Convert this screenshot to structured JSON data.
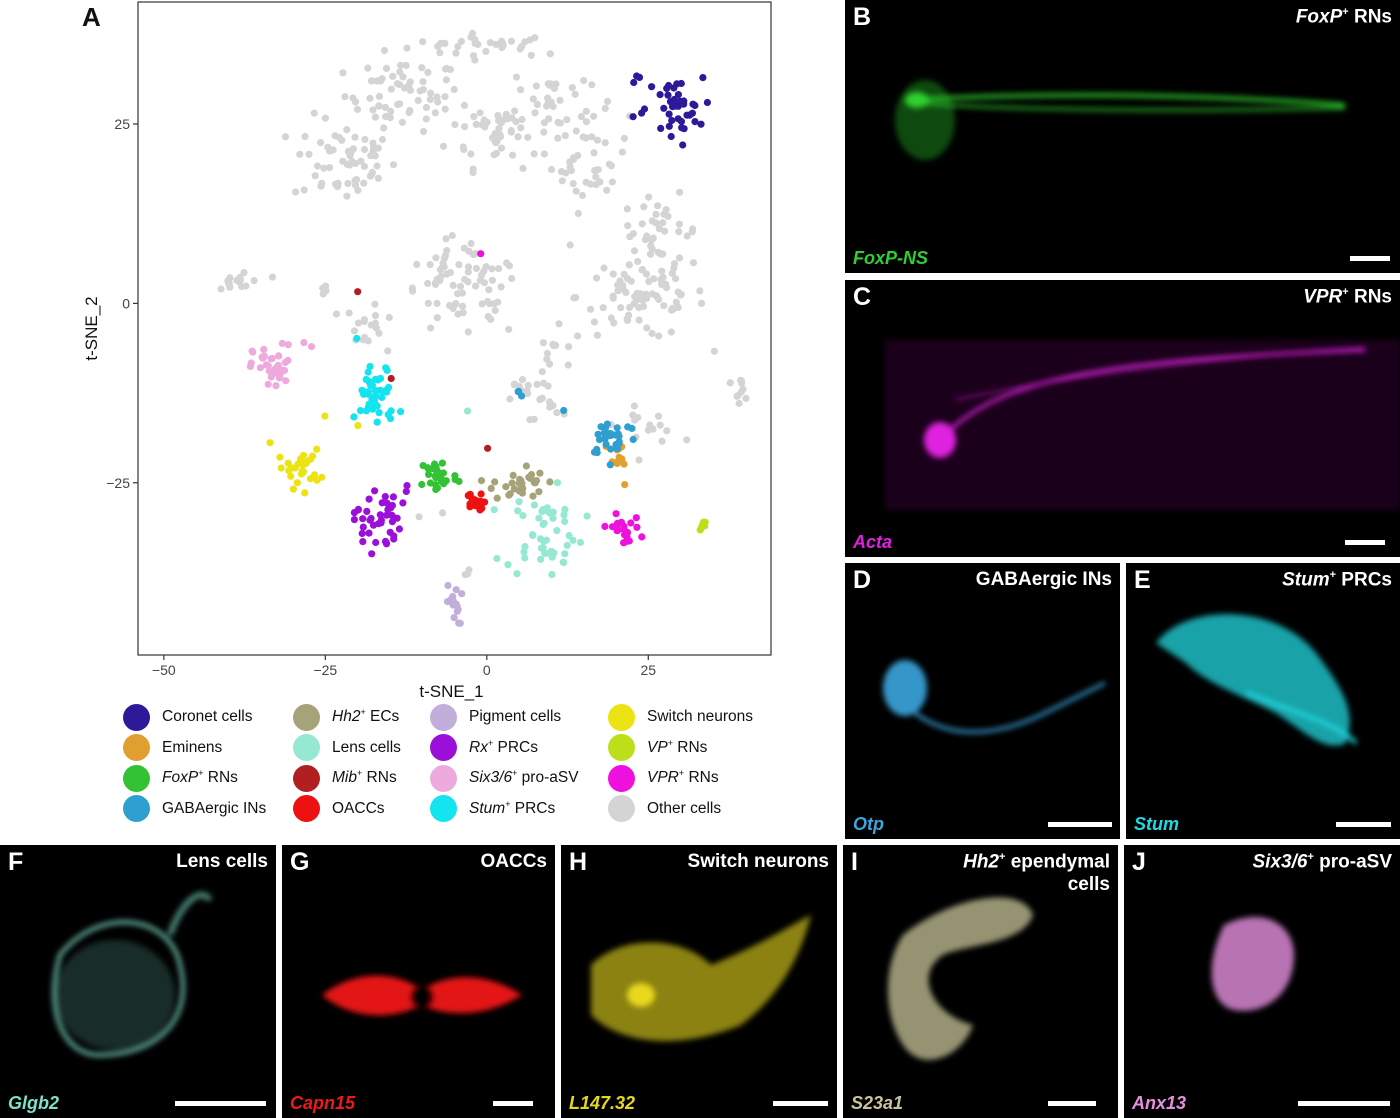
{
  "figure": {
    "panel_a": {
      "letter": "A",
      "colors": {
        "coronet": "#2e1a98",
        "eminens": "#e0a030",
        "foxp": "#33c233",
        "gaba": "#2f9fd0",
        "hh2": "#a6a27a",
        "lens": "#95e8d2",
        "mib": "#b02020",
        "oacc": "#ee1111",
        "pigment": "#c2aedb",
        "rx": "#9b10d8",
        "six": "#eeaadd",
        "stum": "#13e4ef",
        "switch": "#ebe412",
        "vp": "#bcdf1a",
        "vpr": "#ee11dd",
        "other": "#d4d4d4"
      },
      "legend": [
        {
          "key": "coronet",
          "italic": "",
          "sup": "",
          "text": "Coronet cells"
        },
        {
          "key": "eminens",
          "italic": "",
          "sup": "",
          "text": "Eminens"
        },
        {
          "key": "foxp",
          "italic": "FoxP",
          "sup": "+",
          "text": " RNs"
        },
        {
          "key": "gaba",
          "italic": "",
          "sup": "",
          "text": "GABAergic INs"
        },
        {
          "key": "hh2",
          "italic": "Hh2",
          "sup": "+",
          "text": " ECs"
        },
        {
          "key": "lens",
          "italic": "",
          "sup": "",
          "text": "Lens cells"
        },
        {
          "key": "mib",
          "italic": "Mib",
          "sup": "+",
          "text": " RNs"
        },
        {
          "key": "oacc",
          "italic": "",
          "sup": "",
          "text": "OACCs"
        },
        {
          "key": "pigment",
          "italic": "",
          "sup": "",
          "text": "Pigment cells"
        },
        {
          "key": "rx",
          "italic": "Rx",
          "sup": "+",
          "text": " PRCs"
        },
        {
          "key": "six",
          "italic": "Six3/6",
          "sup": "+",
          "text": " pro-aSV"
        },
        {
          "key": "stum",
          "italic": "Stum",
          "sup": "+",
          "text": " PRCs"
        },
        {
          "key": "switch",
          "italic": "",
          "sup": "",
          "text": "Switch neurons"
        },
        {
          "key": "vp",
          "italic": "VP",
          "sup": "+",
          "text": " RNs"
        },
        {
          "key": "vpr",
          "italic": "VPR",
          "sup": "+",
          "text": " RNs"
        },
        {
          "key": "other",
          "italic": "",
          "sup": "",
          "text": "Other cells"
        }
      ]
    },
    "panels": [
      {
        "letter": "B",
        "italic": "FoxP",
        "sup": "+",
        "after": " RNs",
        "stain": "FoxP-NS",
        "color": "#2fd02f"
      },
      {
        "letter": "C",
        "italic": "VPR",
        "sup": "+",
        "after": " RNs",
        "stain": "Acta",
        "color": "#e020e0"
      },
      {
        "letter": "D",
        "italic": "",
        "sup": "",
        "after": "GABAergic INs",
        "stain": "Otp",
        "color": "#3aa6e0"
      },
      {
        "letter": "E",
        "italic": "Stum",
        "sup": "+",
        "after": " PRCs",
        "stain": "Stum",
        "color": "#20d8e0"
      },
      {
        "letter": "F",
        "italic": "",
        "sup": "",
        "after": "Lens cells",
        "stain": "Glgb2",
        "color": "#7de0c8"
      },
      {
        "letter": "G",
        "italic": "",
        "sup": "",
        "after": "OACCs",
        "stain": "Capn15",
        "color": "#f01818"
      },
      {
        "letter": "H",
        "italic": "",
        "sup": "",
        "after": "Switch neurons",
        "stain": "L147.32",
        "color": "#e8d81a"
      },
      {
        "letter": "I",
        "italic": "Hh2",
        "sup": "+",
        "after": " ependymal cells",
        "stain": "S23a1",
        "color": "#c8c49a"
      },
      {
        "letter": "J",
        "italic": "Six3/6",
        "sup": "+",
        "after": " pro-aSV",
        "stain": "Anx13",
        "color": "#e690e0"
      }
    ]
  },
  "chart_data": {
    "type": "scatter",
    "xlabel": "t-SNE_1",
    "ylabel": "t-SNE_2",
    "xlim": [
      -54,
      44
    ],
    "ylim": [
      -49,
      42
    ],
    "xticks": [
      -50,
      -25,
      0,
      25
    ],
    "yticks": [
      -25,
      0,
      25
    ],
    "grid": false,
    "legend": "bottom",
    "series": [
      {
        "name": "Coronet cells",
        "key": "coronet",
        "clusters": [
          {
            "c": [
              29,
              27
            ],
            "sx": 2.2,
            "sy": 2.2,
            "n": 40
          },
          {
            "c": [
              24,
              31
            ],
            "sx": 0.6,
            "sy": 0.6,
            "n": 3
          },
          {
            "c": [
              23,
              26
            ],
            "sx": 0.6,
            "sy": 0.6,
            "n": 2
          }
        ]
      },
      {
        "name": "Eminens",
        "key": "eminens",
        "clusters": [
          {
            "c": [
              20.5,
              -22
            ],
            "sx": 1.2,
            "sy": 1.8,
            "n": 11
          }
        ]
      },
      {
        "name": "FoxP+ RNs",
        "key": "foxp",
        "clusters": [
          {
            "c": [
              -7.5,
              -24
            ],
            "sx": 1.5,
            "sy": 1.3,
            "n": 30
          }
        ]
      },
      {
        "name": "GABAergic INs",
        "key": "gaba",
        "clusters": [
          {
            "c": [
              19.5,
              -18.5
            ],
            "sx": 2.0,
            "sy": 1.4,
            "n": 30
          },
          {
            "c": [
              5,
              -13
            ],
            "sx": 0.9,
            "sy": 0.4,
            "n": 3
          },
          {
            "c": [
              12,
              -15
            ],
            "sx": 0.1,
            "sy": 0.1,
            "n": 1
          }
        ]
      },
      {
        "name": "Hh2+ ECs",
        "key": "hh2",
        "clusters": [
          {
            "c": [
              5,
              -25
            ],
            "sx": 2.0,
            "sy": 1.3,
            "n": 30
          }
        ]
      },
      {
        "name": "Lens cells",
        "key": "lens",
        "clusters": [
          {
            "c": [
              9,
              -32
            ],
            "sx": 3.0,
            "sy": 3.0,
            "n": 50
          },
          {
            "c": [
              -3,
              -15
            ],
            "sx": 0.1,
            "sy": 0.1,
            "n": 1
          }
        ]
      },
      {
        "name": "Mib+ RNs",
        "key": "mib",
        "clusters": [
          {
            "c": [
              -20,
              1.5
            ],
            "sx": 0.1,
            "sy": 0.1,
            "n": 1
          },
          {
            "c": [
              -15,
              -10.5
            ],
            "sx": 0.1,
            "sy": 0.1,
            "n": 1
          },
          {
            "c": [
              0,
              -20
            ],
            "sx": 0.1,
            "sy": 0.1,
            "n": 1
          }
        ]
      },
      {
        "name": "OACCs",
        "key": "oacc",
        "clusters": [
          {
            "c": [
              -2,
              -28
            ],
            "sx": 0.7,
            "sy": 0.8,
            "n": 16
          }
        ]
      },
      {
        "name": "Pigment cells",
        "key": "pigment",
        "clusters": [
          {
            "c": [
              -5,
              -42
            ],
            "sx": 0.6,
            "sy": 1.4,
            "n": 16
          }
        ]
      },
      {
        "name": "Rx+ PRCs",
        "key": "rx",
        "clusters": [
          {
            "c": [
              -17,
              -30
            ],
            "sx": 1.8,
            "sy": 2.2,
            "n": 40
          },
          {
            "c": [
              -12.5,
              -26
            ],
            "sx": 0.6,
            "sy": 0.6,
            "n": 2
          }
        ]
      },
      {
        "name": "Six3/6+ pro-aSV",
        "key": "six",
        "clusters": [
          {
            "c": [
              -33,
              -9
            ],
            "sx": 1.6,
            "sy": 1.6,
            "n": 38
          },
          {
            "c": [
              -28,
              -6
            ],
            "sx": 0.5,
            "sy": 0.5,
            "n": 2
          }
        ]
      },
      {
        "name": "Stum+ PRCs",
        "key": "stum",
        "clusters": [
          {
            "c": [
              -17,
              -13
            ],
            "sx": 1.6,
            "sy": 2.2,
            "n": 45
          },
          {
            "c": [
              -20,
              -5
            ],
            "sx": 0.1,
            "sy": 0.1,
            "n": 1
          }
        ]
      },
      {
        "name": "Switch neurons",
        "key": "switch",
        "clusters": [
          {
            "c": [
              -29,
              -23
            ],
            "sx": 1.6,
            "sy": 1.3,
            "n": 26
          },
          {
            "c": [
              -33.5,
              -19.5
            ],
            "sx": 0.1,
            "sy": 0.1,
            "n": 1
          },
          {
            "c": [
              -25,
              -15.5
            ],
            "sx": 0.1,
            "sy": 0.1,
            "n": 1
          },
          {
            "c": [
              -20,
              -17
            ],
            "sx": 0.1,
            "sy": 0.1,
            "n": 1
          }
        ]
      },
      {
        "name": "VP+ RNs",
        "key": "vp",
        "clusters": [
          {
            "c": [
              33.5,
              -31
            ],
            "sx": 0.3,
            "sy": 0.3,
            "n": 6
          }
        ]
      },
      {
        "name": "VPR+ RNs",
        "key": "vpr",
        "clusters": [
          {
            "c": [
              21,
              -31.5
            ],
            "sx": 1.4,
            "sy": 1.0,
            "n": 22
          },
          {
            "c": [
              -1.2,
              6.8
            ],
            "sx": 0.1,
            "sy": 0.1,
            "n": 1
          }
        ]
      },
      {
        "name": "Other cells",
        "key": "other",
        "clusters": [
          {
            "c": [
              0,
              36
            ],
            "sx": 6.0,
            "sy": 0.8,
            "n": 30
          },
          {
            "c": [
              -13,
              29
            ],
            "sx": 4.5,
            "sy": 2.5,
            "n": 60
          },
          {
            "c": [
              -22,
              20
            ],
            "sx": 4.0,
            "sy": 3.0,
            "n": 60
          },
          {
            "c": [
              2,
              24
            ],
            "sx": 4.0,
            "sy": 2.5,
            "n": 50
          },
          {
            "c": [
              10,
              28
            ],
            "sx": 3.0,
            "sy": 3.0,
            "n": 30
          },
          {
            "c": [
              16,
              20
            ],
            "sx": 3.0,
            "sy": 3.5,
            "n": 40
          },
          {
            "c": [
              27,
              10
            ],
            "sx": 3.0,
            "sy": 2.5,
            "n": 35
          },
          {
            "c": [
              24,
              1
            ],
            "sx": 5.0,
            "sy": 3.0,
            "n": 80
          },
          {
            "c": [
              -4,
              1
            ],
            "sx": 5.0,
            "sy": 3.0,
            "n": 60
          },
          {
            "c": [
              -38,
              3
            ],
            "sx": 2.0,
            "sy": 1.0,
            "n": 15
          },
          {
            "c": [
              -25,
              2
            ],
            "sx": 0.3,
            "sy": 0.4,
            "n": 4
          },
          {
            "c": [
              -19,
              -3
            ],
            "sx": 1.5,
            "sy": 1.5,
            "n": 15
          },
          {
            "c": [
              10,
              -10
            ],
            "sx": 2.0,
            "sy": 3.0,
            "n": 25
          },
          {
            "c": [
              5,
              -12
            ],
            "sx": 1.0,
            "sy": 1.0,
            "n": 8
          },
          {
            "c": [
              39,
              -12
            ],
            "sx": 1.0,
            "sy": 0.8,
            "n": 10
          },
          {
            "c": [
              25,
              -17
            ],
            "sx": 2.5,
            "sy": 1.2,
            "n": 15
          },
          {
            "c": [
              -10,
              -30
            ],
            "sx": 1.0,
            "sy": 1.0,
            "n": 2
          },
          {
            "c": [
              -3,
              -38
            ],
            "sx": 0.5,
            "sy": 0.8,
            "n": 3
          },
          {
            "c": [
              -5,
              6
            ],
            "sx": 2.5,
            "sy": 2.0,
            "n": 15
          }
        ]
      }
    ]
  }
}
